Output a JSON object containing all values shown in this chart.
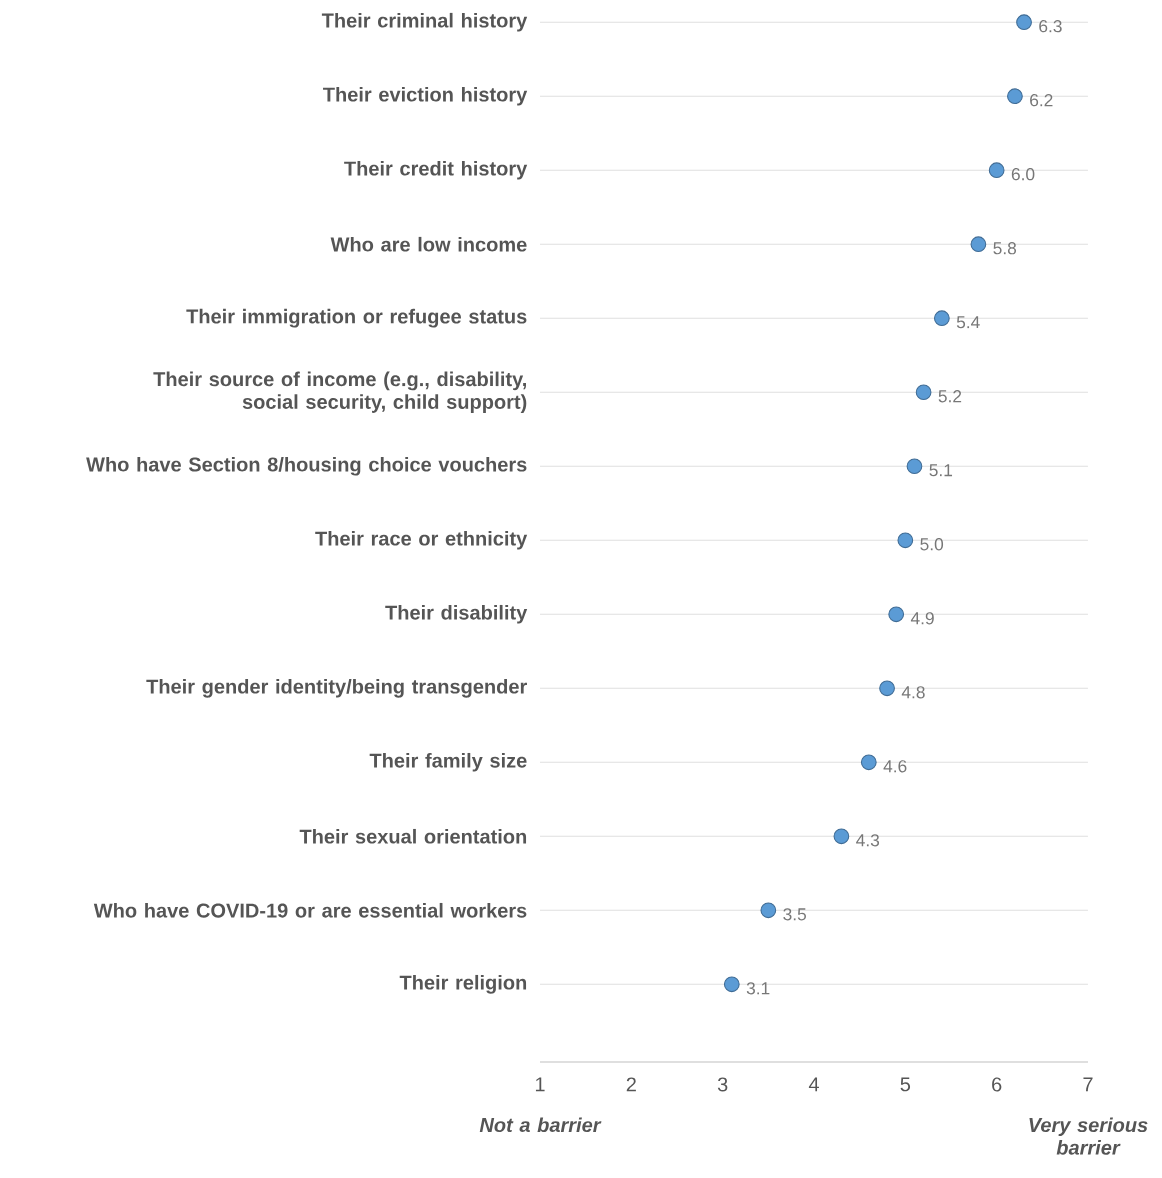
{
  "chart_data": {
    "type": "scatter",
    "orientation": "horizontal",
    "categories": [
      "Their criminal history",
      "Their eviction history",
      "Their credit history",
      "Who are low income",
      "Their immigration or refugee status",
      "Their source of income (e.g., disability, social security, child support)",
      "Who have Section 8/housing choice vouchers",
      "Their race or ethnicity",
      "Their disability",
      "Their gender identity/being transgender",
      "Their family size",
      "Their sexual orientation",
      "Who have COVID-19 or are essential workers",
      "Their religion"
    ],
    "values": [
      6.3,
      6.2,
      6.0,
      5.8,
      5.4,
      5.2,
      5.1,
      5.0,
      4.9,
      4.8,
      4.6,
      4.3,
      3.5,
      3.1
    ],
    "value_labels": [
      "6.3",
      "6.2",
      "6.0",
      "5.8",
      "5.4",
      "5.2",
      "5.1",
      "5.0",
      "4.9",
      "4.8",
      "4.6",
      "4.3",
      "3.5",
      "3.1"
    ],
    "color": "#5b9bd5",
    "marker": "circle",
    "grid": "y",
    "xlim": [
      1,
      7
    ],
    "xticks": [
      1,
      2,
      3,
      4,
      5,
      6,
      7
    ],
    "annotations": [
      "Not a barrier",
      "Very serious barrier"
    ]
  }
}
